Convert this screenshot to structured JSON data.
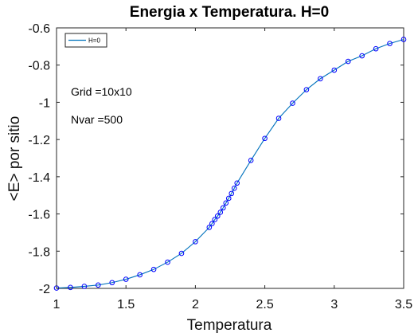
{
  "chart_data": {
    "type": "line",
    "title": "Energia x Temperatura. H=0",
    "xlabel": "Temperatura",
    "ylabel": "<E> por sitio",
    "xlim": [
      1,
      3.5
    ],
    "ylim": [
      -2,
      -0.6
    ],
    "x_ticks": [
      "1",
      "1.5",
      "2",
      "2.5",
      "3",
      "3.5"
    ],
    "y_ticks": [
      "-0.6",
      "-0.8",
      "-1",
      "-1.2",
      "-1.4",
      "-1.6",
      "-1.8",
      "-2"
    ],
    "grid": false,
    "legend_position": "top-left",
    "annotations": [
      "Grid =10x10",
      "Nvar =500"
    ],
    "series": [
      {
        "name": "H=0",
        "color": "#0072BD",
        "marker": "circle",
        "marker_color": "#0000ff",
        "x": [
          1.0,
          1.1,
          1.2,
          1.3,
          1.4,
          1.5,
          1.6,
          1.7,
          1.8,
          1.9,
          2.0,
          2.1,
          2.12,
          2.14,
          2.16,
          2.18,
          2.2,
          2.22,
          2.24,
          2.26,
          2.28,
          2.3,
          2.4,
          2.5,
          2.6,
          2.7,
          2.8,
          2.9,
          3.0,
          3.1,
          3.2,
          3.3,
          3.4,
          3.5
        ],
        "y": [
          -1.998,
          -1.995,
          -1.989,
          -1.982,
          -1.969,
          -1.951,
          -1.927,
          -1.898,
          -1.859,
          -1.812,
          -1.749,
          -1.672,
          -1.652,
          -1.63,
          -1.611,
          -1.591,
          -1.567,
          -1.541,
          -1.516,
          -1.49,
          -1.462,
          -1.434,
          -1.312,
          -1.194,
          -1.086,
          -1.005,
          -0.932,
          -0.873,
          -0.827,
          -0.78,
          -0.75,
          -0.712,
          -0.684,
          -0.662
        ]
      }
    ]
  }
}
